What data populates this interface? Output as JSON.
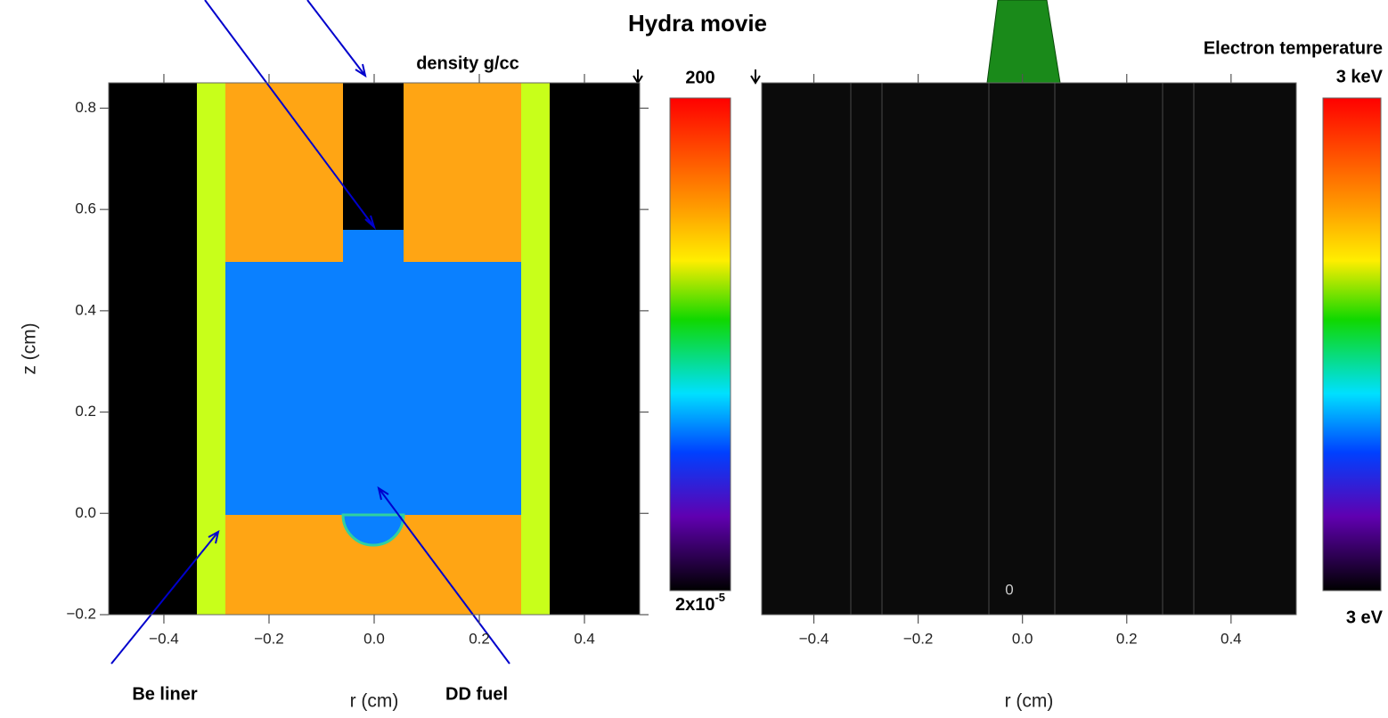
{
  "title": "Hydra movie",
  "chart_data": [
    {
      "type": "image",
      "xlabel": "r (cm)",
      "ylabel": "z (cm)",
      "xlim": [
        -0.505,
        0.505
      ],
      "ylim": [
        -0.2,
        0.85
      ],
      "xticks": [
        {
          "value": -0.4,
          "label": "−0.4"
        },
        {
          "value": -0.2,
          "label": "−0.2"
        },
        {
          "value": 0,
          "label": "0.0"
        },
        0.2,
        0.4
      ],
      "yticks": [
        {
          "value": -0.2,
          "label": "−0.2"
        },
        {
          "value": 0,
          "label": "0.0"
        },
        0.2,
        0.4,
        0.6,
        0.8
      ],
      "colorbar": {
        "title": "density g/cc",
        "max_label": "200",
        "min_base": "2x10",
        "min_exp": "-5"
      },
      "annotations": [
        "Be liner",
        "DD fuel"
      ]
    },
    {
      "type": "image",
      "xlabel": "r (cm)",
      "xlim": [
        -0.5,
        0.525
      ],
      "ylim": [
        -0.2,
        0.85
      ],
      "xticks": [
        {
          "value": -0.4,
          "label": "−0.4"
        },
        {
          "value": -0.2,
          "label": "−0.2"
        },
        {
          "value": 0,
          "label": "0.0"
        },
        0.2,
        0.4
      ],
      "colorbar": {
        "title": "Electron temperature",
        "max_label": "3 keV",
        "min_label": "3 eV"
      },
      "annotations": [
        "0"
      ]
    }
  ]
}
